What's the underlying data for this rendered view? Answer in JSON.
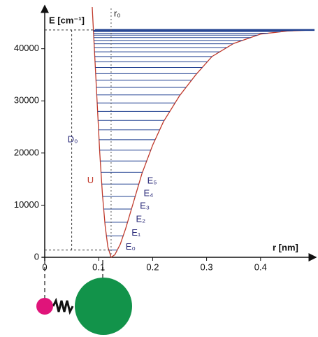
{
  "chart_data": {
    "type": "line",
    "x_label": "r [nm]",
    "y_label": "E [cm⁻¹]",
    "xlim": [
      0,
      0.5
    ],
    "ylim": [
      0,
      48000
    ],
    "xticks": [
      0,
      0.1,
      0.2,
      0.3,
      0.4
    ],
    "yticks": [
      0,
      10000,
      20000,
      30000,
      40000
    ],
    "x": [
      0.088,
      0.092,
      0.097,
      0.102,
      0.107,
      0.112,
      0.117,
      0.123,
      0.13,
      0.14,
      0.15,
      0.16,
      0.17,
      0.18,
      0.2,
      0.22,
      0.25,
      0.28,
      0.31,
      0.35,
      0.4,
      0.45,
      0.5
    ],
    "series": [
      {
        "name": "U",
        "color": "#c0392b",
        "values": [
          48000,
          40000,
          30000,
          20000,
          12000,
          6000,
          2000,
          0,
          500,
          2500,
          5500,
          9000,
          12500,
          16000,
          21500,
          26000,
          31000,
          35000,
          38500,
          41000,
          42800,
          43400,
          43600
        ]
      }
    ],
    "levels": {
      "color": "#1f3f8f",
      "values": [
        1389,
        4099,
        6719,
        9249,
        11689,
        14039,
        16299,
        18469,
        20549,
        22539,
        24439,
        26249,
        27969,
        29599,
        31139,
        32589,
        33949,
        35219,
        36399,
        37489,
        38489,
        39399,
        40219,
        40949,
        41589,
        42139,
        42599,
        42969,
        43249,
        43439,
        43539
      ],
      "labels": [
        "E₀",
        "E₁",
        "E₂",
        "E₃",
        "E₄",
        "E₅"
      ]
    },
    "equilibrium": {
      "label": "r₀",
      "x": 0.123
    },
    "dissociation": {
      "label": "D₀",
      "value": 43600
    }
  }
}
